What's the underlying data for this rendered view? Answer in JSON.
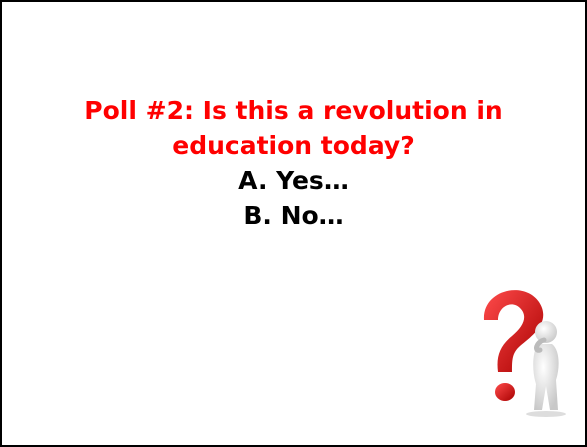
{
  "slide": {
    "title": "Poll #2: Is this a revolution in education today?",
    "options": [
      "A. Yes…",
      "B. No…"
    ]
  }
}
